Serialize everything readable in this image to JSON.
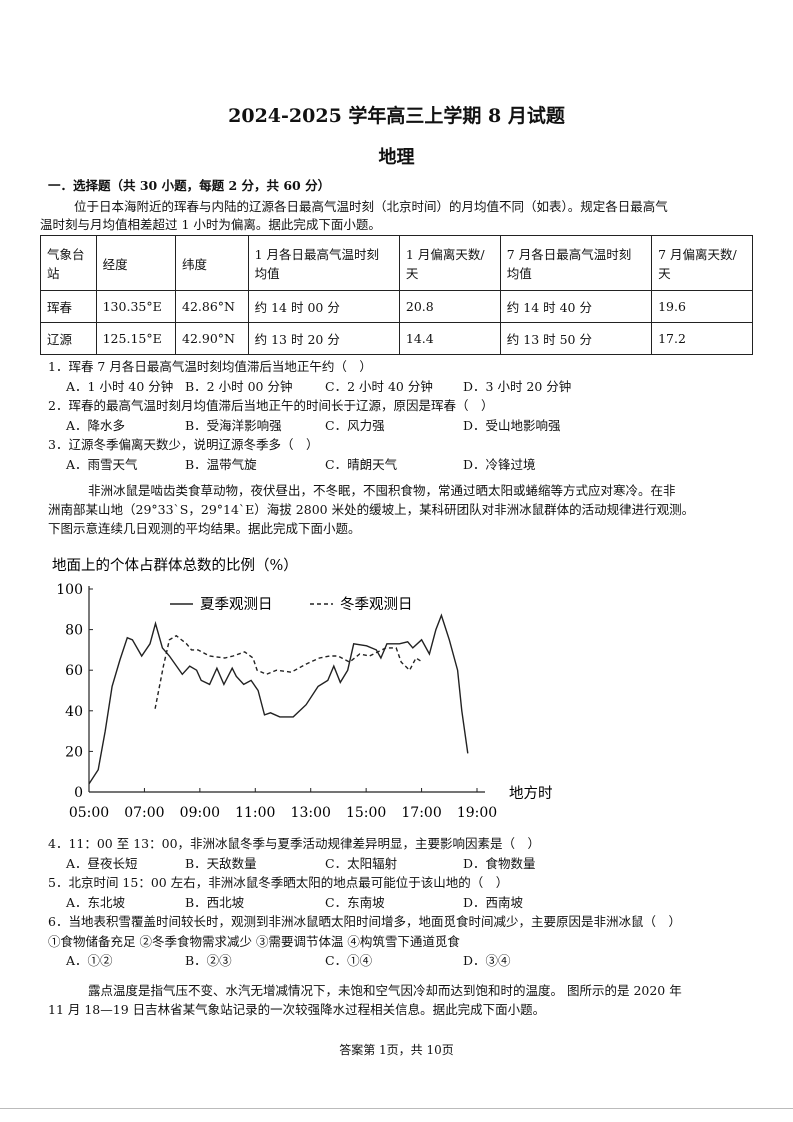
{
  "title": "2024-2025 学年高三上学期 8 月试题",
  "subject": "地理",
  "section": "一．选择题（共 30 小题，每题 2 分，共 60 分）",
  "intro1": [
    "位于日本海附近的珲春与内陆的辽源各日最高气温时刻（北京时间）的月均值不同（如表）。规定各日最高气",
    "温时刻与月均值相差超过 1 小时为偏离。据此完成下面小题。"
  ],
  "table": {
    "headers": [
      [
        "气象台",
        "站"
      ],
      [
        "经度"
      ],
      [
        "纬度"
      ],
      [
        "1 月各日最高气温时刻",
        "均值"
      ],
      [
        "1 月偏离天数/",
        "天"
      ],
      [
        "7 月各日最高气温时刻",
        "均值"
      ],
      [
        "7 月偏离天数/",
        "天"
      ]
    ],
    "rows": [
      [
        "珲春",
        "130.35°E",
        "42.86°N",
        "约 14 时 00 分",
        "20.8",
        "约 14 时 40 分",
        "19.6"
      ],
      [
        "辽源",
        "125.15°E",
        "42.90°N",
        "约 13 时 20 分",
        "14.4",
        "约 13 时 50 分",
        "17.2"
      ]
    ]
  },
  "questions1": [
    {
      "stem": "1．珲春 7 月各日最高气温时刻均值滞后当地正午约（　）",
      "options": [
        "A．1 小时 40 分钟",
        "B．2 小时 00 分钟",
        "C．2 小时 40 分钟",
        "D．3 小时 20 分钟"
      ]
    },
    {
      "stem": "2．珲春的最高气温时刻月均值滞后当地正午的时间长于辽源，原因是珲春（　）",
      "options": [
        "A．降水多",
        "B．受海洋影响强",
        "C．风力强",
        "D．受山地影响强"
      ]
    },
    {
      "stem": "3．辽源冬季偏离天数少，说明辽源冬季多（　）",
      "options": [
        "A．雨雪天气",
        "B．温带气旋",
        "C．晴朗天气",
        "D．冷锋过境"
      ]
    }
  ],
  "intro2": [
    "非洲冰鼠是啮齿类食草动物，夜伏昼出，不冬眠，不囤积食物，常通过晒太阳或蜷缩等方式应对寒冷。在非",
    "洲南部某山地（29°33`S，29°14`E）海拔 2800 米处的缓坡上，某科研团队对非洲冰鼠群体的活动规律进行观测。",
    "下图示意连续几日观测的平均结果。据此完成下面小题。"
  ],
  "chart_data": {
    "type": "line",
    "ylabel": "地面上的个体占群体总数的比例（%）",
    "xlabel": "地方时",
    "ylim": [
      0,
      100
    ],
    "yticks": [
      0,
      20,
      40,
      60,
      80,
      100
    ],
    "xticks": [
      "05:00",
      "07:00",
      "09:00",
      "11:00",
      "13:00",
      "15:00",
      "17:00",
      "19:00"
    ],
    "legend_position": "top",
    "series": [
      {
        "name": "夏季观测日",
        "style": "solid",
        "points": [
          [
            "05:00",
            4
          ],
          [
            "05:20",
            11
          ],
          [
            "05:35",
            30
          ],
          [
            "05:50",
            52
          ],
          [
            "06:07",
            65
          ],
          [
            "06:23",
            76
          ],
          [
            "06:34",
            75
          ],
          [
            "06:54",
            67
          ],
          [
            "07:12",
            73
          ],
          [
            "07:24",
            83
          ],
          [
            "07:39",
            71
          ],
          [
            "07:54",
            67
          ],
          [
            "08:22",
            58
          ],
          [
            "08:38",
            62
          ],
          [
            "08:53",
            60
          ],
          [
            "09:03",
            55
          ],
          [
            "09:21",
            53
          ],
          [
            "09:37",
            61
          ],
          [
            "09:52",
            53
          ],
          [
            "10:10",
            61
          ],
          [
            "10:19",
            57
          ],
          [
            "10:35",
            53
          ],
          [
            "10:51",
            55
          ],
          [
            "11:06",
            50
          ],
          [
            "11:20",
            38
          ],
          [
            "11:33",
            39
          ],
          [
            "11:53",
            37
          ],
          [
            "12:22",
            37
          ],
          [
            "12:50",
            43
          ],
          [
            "13:16",
            52
          ],
          [
            "13:37",
            55
          ],
          [
            "13:50",
            62
          ],
          [
            "14:04",
            54
          ],
          [
            "14:20",
            60
          ],
          [
            "14:33",
            73
          ],
          [
            "15:01",
            72
          ],
          [
            "15:22",
            70
          ],
          [
            "15:32",
            66
          ],
          [
            "15:45",
            73
          ],
          [
            "16:12",
            73
          ],
          [
            "16:30",
            74
          ],
          [
            "16:41",
            71
          ],
          [
            "17:00",
            75
          ],
          [
            "17:17",
            68
          ],
          [
            "17:31",
            80
          ],
          [
            "17:43",
            87
          ],
          [
            "18:00",
            75
          ],
          [
            "18:18",
            60
          ],
          [
            "18:27",
            40
          ],
          [
            "18:40",
            19
          ]
        ]
      },
      {
        "name": "冬季观测日",
        "style": "dashed",
        "points": [
          [
            "07:23",
            41
          ],
          [
            "07:41",
            62
          ],
          [
            "07:54",
            75
          ],
          [
            "08:09",
            77
          ],
          [
            "08:31",
            73
          ],
          [
            "08:42",
            70
          ],
          [
            "08:56",
            70
          ],
          [
            "09:21",
            67
          ],
          [
            "09:54",
            66
          ],
          [
            "10:12",
            67
          ],
          [
            "10:37",
            69
          ],
          [
            "10:55",
            66
          ],
          [
            "11:04",
            60
          ],
          [
            "11:24",
            58
          ],
          [
            "11:46",
            60
          ],
          [
            "12:18",
            59
          ],
          [
            "12:50",
            63
          ],
          [
            "13:19",
            66
          ],
          [
            "13:41",
            67
          ],
          [
            "13:59",
            67
          ],
          [
            "14:24",
            64
          ],
          [
            "14:46",
            68
          ],
          [
            "15:07",
            67
          ],
          [
            "15:43",
            71
          ],
          [
            "16:05",
            71
          ],
          [
            "16:16",
            64
          ],
          [
            "16:34",
            60
          ],
          [
            "16:48",
            66
          ],
          [
            "17:02",
            64
          ]
        ]
      }
    ]
  },
  "questions2": [
    {
      "stem": "4．11：00 至 13：00，非洲冰鼠冬季与夏季活动规律差异明显，主要影响因素是（　）",
      "options": [
        "A．昼夜长短",
        "B．天敌数量",
        "C．太阳辐射",
        "D．食物数量"
      ]
    },
    {
      "stem": "5．北京时间 15：00 左右，非洲冰鼠冬季晒太阳的地点最可能位于该山地的（　）",
      "options": [
        "A．东北坡",
        "B．西北坡",
        "C．东南坡",
        "D．西南坡"
      ]
    },
    {
      "stem": "6．当地表积雪覆盖时间较长时，观测到非洲冰鼠晒太阳时间增多，地面觅食时间减少，主要原因是非洲冰鼠（　）",
      "sub": "①食物储备充足 ②冬季食物需求减少 ③需要调节体温 ④构筑雪下通道觅食",
      "options": [
        "A．①②",
        "B．②③",
        "C．①④",
        "D．③④"
      ]
    }
  ],
  "intro3": [
    "露点温度是指气压不变、水汽无增减情况下，未饱和空气因冷却而达到饱和时的温度。 图所示的是 2020 年",
    "11 月 18—19 日吉林省某气象站记录的一次较强降水过程相关信息。据此完成下面小题。"
  ],
  "footer": "答案第 1页，共 10页"
}
